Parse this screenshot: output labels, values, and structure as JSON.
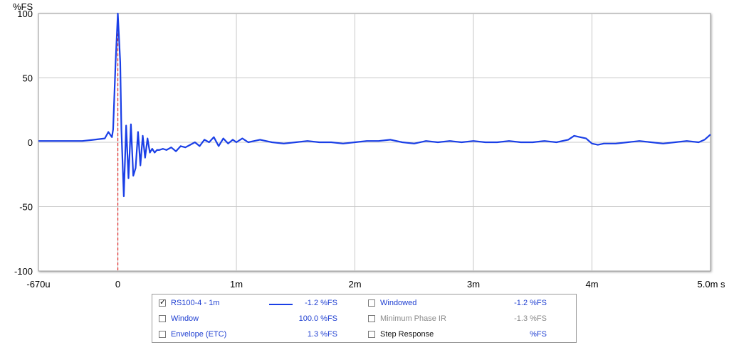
{
  "chart_data": {
    "type": "line",
    "ylabel": "%FS",
    "xunit": "s",
    "xlim": [
      -0.00067,
      0.005
    ],
    "ylim": [
      -100,
      100
    ],
    "grid": true,
    "yticks": [
      {
        "value": 100,
        "label": "100"
      },
      {
        "value": 50,
        "label": "50"
      },
      {
        "value": 0,
        "label": "0"
      },
      {
        "value": -50,
        "label": "-50"
      },
      {
        "value": -100,
        "label": "-100"
      }
    ],
    "xticks": [
      {
        "value": -0.00067,
        "label": "-670u"
      },
      {
        "value": 0,
        "label": "0"
      },
      {
        "value": 0.001,
        "label": "1m"
      },
      {
        "value": 0.002,
        "label": "2m"
      },
      {
        "value": 0.003,
        "label": "3m"
      },
      {
        "value": 0.004,
        "label": "4m"
      },
      {
        "value": 0.005,
        "label": "5.0m"
      }
    ],
    "markers": [
      {
        "x": 0,
        "color": "#e02020",
        "style": "dashed"
      }
    ],
    "series": [
      {
        "name": "RS100-4 - 1m",
        "color": "#1a3fe6",
        "x": [
          -0.00067,
          -0.0005,
          -0.0003,
          -0.0002,
          -0.00011,
          -8e-05,
          -5e-05,
          -4e-05,
          -2e-05,
          0,
          2e-05,
          3e-05,
          5e-05,
          7e-05,
          9e-05,
          0.00011,
          0.00013,
          0.00015,
          0.00017,
          0.00019,
          0.00021,
          0.00023,
          0.00025,
          0.00027,
          0.00029,
          0.00031,
          0.00033,
          0.00035,
          0.00038,
          0.00041,
          0.00045,
          0.00049,
          0.00053,
          0.00057,
          0.00061,
          0.00065,
          0.00069,
          0.00073,
          0.00077,
          0.00081,
          0.00085,
          0.00089,
          0.00093,
          0.00097,
          0.001,
          0.00105,
          0.0011,
          0.00115,
          0.0012,
          0.0013,
          0.0014,
          0.0015,
          0.0016,
          0.0017,
          0.0018,
          0.0019,
          0.002,
          0.0021,
          0.0022,
          0.0023,
          0.0024,
          0.0025,
          0.0026,
          0.0027,
          0.0028,
          0.0029,
          0.003,
          0.0031,
          0.0032,
          0.0033,
          0.0034,
          0.0035,
          0.0036,
          0.0037,
          0.0038,
          0.00385,
          0.0039,
          0.00395,
          0.004,
          0.00405,
          0.0041,
          0.0042,
          0.0043,
          0.0044,
          0.0045,
          0.0046,
          0.0047,
          0.0048,
          0.0049,
          0.00495,
          0.005
        ],
        "y": [
          1,
          1,
          1,
          2,
          3,
          8,
          4,
          10,
          60,
          100,
          62,
          10,
          -42,
          13,
          -28,
          14,
          -26,
          -20,
          8,
          -18,
          5,
          -12,
          3,
          -8,
          -5,
          -8,
          -6,
          -6,
          -5,
          -6,
          -4,
          -7,
          -3,
          -4,
          -2,
          0,
          -3,
          2,
          0,
          4,
          -3,
          3,
          -1,
          2,
          0,
          3,
          0,
          1,
          2,
          0,
          -1,
          0,
          1,
          0,
          0,
          -1,
          0,
          1,
          1,
          2,
          0,
          -1,
          1,
          0,
          1,
          0,
          1,
          0,
          0,
          1,
          0,
          0,
          1,
          0,
          2,
          5,
          4,
          3,
          -1,
          -2,
          -1,
          -1,
          0,
          1,
          0,
          -1,
          0,
          1,
          0,
          2,
          6
        ]
      }
    ]
  },
  "legend": {
    "rows": [
      [
        {
          "checked": true,
          "name": "RS100-4 - 1m",
          "value": "-1.2 %FS",
          "swatch": true,
          "style": "blue"
        },
        {
          "checked": false,
          "name": "Windowed",
          "value": "-1.2 %FS",
          "style": "blue"
        }
      ],
      [
        {
          "checked": false,
          "name": "Window",
          "value": "100.0 %FS",
          "style": "blue"
        },
        {
          "checked": false,
          "name": "Minimum Phase IR",
          "value": "-1.3 %FS",
          "style": "grey"
        }
      ],
      [
        {
          "checked": false,
          "name": "Envelope (ETC)",
          "value": "1.3 %FS",
          "style": "blue"
        },
        {
          "checked": false,
          "name": "Step Response",
          "value": "%FS",
          "style": "dark"
        }
      ]
    ]
  }
}
